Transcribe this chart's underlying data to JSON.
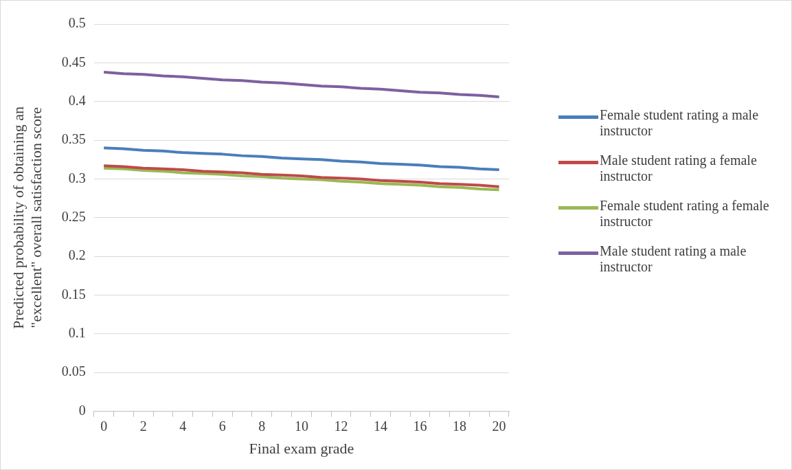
{
  "chart_data": {
    "type": "line",
    "xlabel": "Final exam grade",
    "ylabel": "Predicted probability of obtaining an \"excellent\" overall satisfaction score",
    "categories": [
      "0",
      null,
      "2",
      null,
      "4",
      null,
      "6",
      null,
      "8",
      null,
      "10",
      null,
      "12",
      null,
      "14",
      null,
      "16",
      null,
      "18",
      null,
      "20"
    ],
    "series": [
      {
        "name": "Female student rating a male instructor",
        "color": "#4a7ebb",
        "values": [
          0.34,
          0.339,
          0.337,
          0.336,
          0.334,
          0.333,
          0.332,
          0.33,
          0.329,
          0.327,
          0.326,
          0.325,
          0.323,
          0.322,
          0.32,
          0.319,
          0.318,
          0.316,
          0.315,
          0.313,
          0.312
        ]
      },
      {
        "name": "Male student rating a female instructor",
        "color": "#be4b48",
        "values": [
          0.317,
          0.316,
          0.314,
          0.313,
          0.312,
          0.31,
          0.309,
          0.308,
          0.306,
          0.305,
          0.304,
          0.302,
          0.301,
          0.3,
          0.298,
          0.297,
          0.296,
          0.294,
          0.293,
          0.292,
          0.29
        ]
      },
      {
        "name": "Female student rating a female instructor",
        "color": "#98b954",
        "values": [
          0.314,
          0.313,
          0.311,
          0.31,
          0.308,
          0.307,
          0.306,
          0.304,
          0.303,
          0.301,
          0.3,
          0.299,
          0.297,
          0.296,
          0.294,
          0.293,
          0.292,
          0.29,
          0.289,
          0.287,
          0.286
        ]
      },
      {
        "name": "Male student rating a male instructor",
        "color": "#7d60a0",
        "values": [
          0.438,
          0.436,
          0.435,
          0.433,
          0.432,
          0.43,
          0.428,
          0.427,
          0.425,
          0.424,
          0.422,
          0.42,
          0.419,
          0.417,
          0.416,
          0.414,
          0.412,
          0.411,
          0.409,
          0.408,
          0.406
        ]
      }
    ],
    "ylim": [
      0,
      0.5
    ],
    "yticks": [
      0,
      0.05,
      0.1,
      0.15,
      0.2,
      0.25,
      0.3,
      0.35,
      0.4,
      0.45,
      0.5
    ],
    "grid": "y",
    "legend": "right",
    "marker": "none",
    "line_style": "solid"
  }
}
